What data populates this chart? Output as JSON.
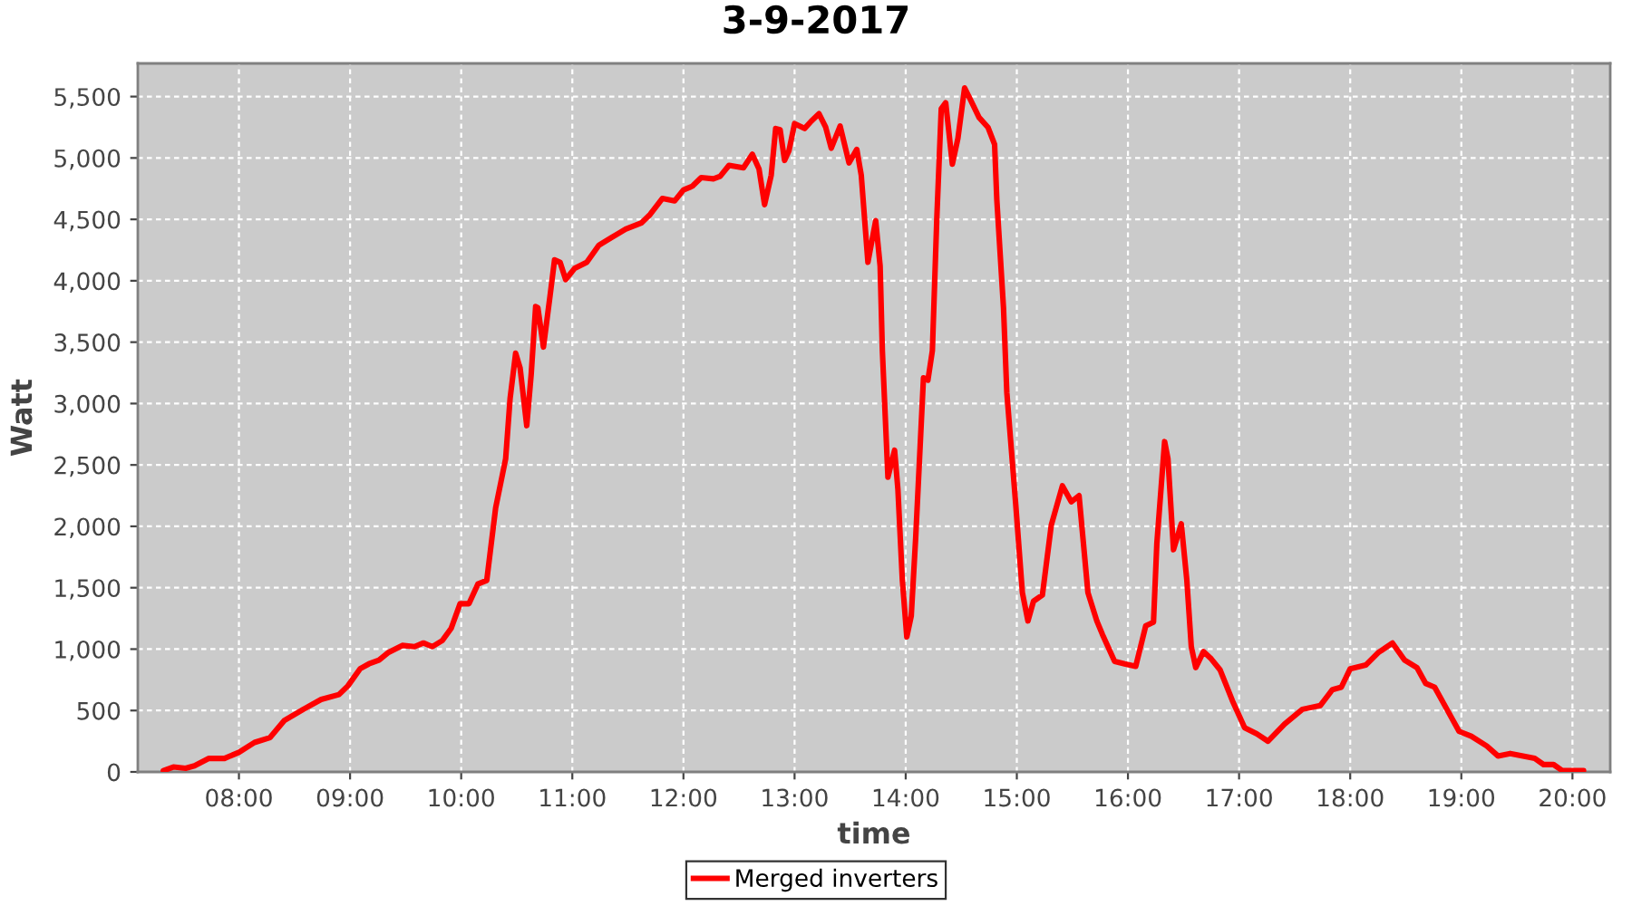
{
  "chart_data": {
    "type": "line",
    "title": "3-9-2017",
    "xlabel": "time",
    "ylabel": "Watt",
    "x": [
      7.32,
      7.41,
      7.52,
      7.6,
      7.73,
      7.87,
      8.0,
      8.14,
      8.28,
      8.41,
      8.58,
      8.74,
      8.9,
      8.98,
      9.09,
      9.17,
      9.26,
      9.34,
      9.47,
      9.58,
      9.66,
      9.74,
      9.83,
      9.91,
      9.99,
      10.07,
      10.15,
      10.23,
      10.31,
      10.4,
      10.44,
      10.49,
      10.53,
      10.59,
      10.63,
      10.67,
      10.69,
      10.74,
      10.8,
      10.84,
      10.89,
      10.94,
      11.02,
      11.13,
      11.24,
      11.35,
      11.48,
      11.62,
      11.7,
      11.81,
      11.92,
      12.0,
      12.08,
      12.16,
      12.27,
      12.33,
      12.41,
      12.54,
      12.62,
      12.68,
      12.73,
      12.79,
      12.83,
      12.87,
      12.91,
      12.95,
      13.0,
      13.09,
      13.15,
      13.22,
      13.28,
      13.33,
      13.41,
      13.49,
      13.56,
      13.6,
      13.66,
      13.73,
      13.77,
      13.79,
      13.84,
      13.9,
      13.93,
      13.97,
      14.01,
      14.05,
      14.09,
      14.16,
      14.2,
      14.24,
      14.28,
      14.32,
      14.36,
      14.42,
      14.47,
      14.53,
      14.58,
      14.66,
      14.74,
      14.8,
      14.82,
      14.88,
      14.91,
      14.99,
      15.05,
      15.1,
      15.15,
      15.23,
      15.31,
      15.41,
      15.49,
      15.56,
      15.64,
      15.72,
      15.77,
      15.88,
      15.97,
      16.07,
      16.16,
      16.23,
      16.26,
      16.33,
      16.36,
      16.41,
      16.48,
      16.53,
      16.57,
      16.61,
      16.68,
      16.75,
      16.83,
      16.94,
      17.05,
      17.16,
      17.26,
      17.41,
      17.57,
      17.73,
      17.84,
      17.92,
      18.0,
      18.14,
      18.25,
      18.38,
      18.49,
      18.6,
      18.68,
      18.76,
      18.87,
      18.98,
      19.09,
      19.23,
      19.33,
      19.44,
      19.66,
      19.74,
      19.83,
      19.91,
      20.1
    ],
    "series": [
      {
        "name": "Merged inverters",
        "color": "#ff0000",
        "values": [
          10,
          40,
          30,
          50,
          110,
          110,
          160,
          240,
          280,
          420,
          510,
          590,
          630,
          700,
          840,
          880,
          910,
          970,
          1030,
          1020,
          1050,
          1020,
          1070,
          1170,
          1370,
          1370,
          1530,
          1560,
          2150,
          2550,
          3040,
          3410,
          3290,
          2820,
          3240,
          3790,
          3780,
          3460,
          3880,
          4170,
          4150,
          4010,
          4100,
          4150,
          4290,
          4350,
          4420,
          4470,
          4540,
          4670,
          4650,
          4740,
          4770,
          4840,
          4830,
          4850,
          4940,
          4920,
          5030,
          4910,
          4620,
          4860,
          5240,
          5230,
          4980,
          5060,
          5280,
          5240,
          5300,
          5360,
          5250,
          5080,
          5260,
          4960,
          5070,
          4860,
          4150,
          4490,
          4120,
          3430,
          2400,
          2620,
          2300,
          1560,
          1100,
          1270,
          1910,
          3210,
          3190,
          3430,
          4510,
          5400,
          5450,
          4950,
          5160,
          5570,
          5480,
          5330,
          5250,
          5110,
          4660,
          3780,
          3090,
          2180,
          1460,
          1230,
          1390,
          1440,
          2010,
          2330,
          2200,
          2250,
          1460,
          1230,
          1120,
          900,
          880,
          860,
          1190,
          1220,
          1860,
          2690,
          2550,
          1810,
          2020,
          1560,
          1020,
          850,
          980,
          920,
          830,
          580,
          360,
          310,
          250,
          390,
          510,
          540,
          670,
          690,
          840,
          870,
          970,
          1050,
          910,
          850,
          720,
          690,
          510,
          330,
          290,
          210,
          130,
          150,
          110,
          60,
          60,
          10,
          10
        ]
      }
    ],
    "xlim": [
      7.09,
      20.34
    ],
    "ylim": [
      0,
      5770
    ],
    "xticks": [
      {
        "value": 8,
        "label": "08:00"
      },
      {
        "value": 9,
        "label": "09:00"
      },
      {
        "value": 10,
        "label": "10:00"
      },
      {
        "value": 11,
        "label": "11:00"
      },
      {
        "value": 12,
        "label": "12:00"
      },
      {
        "value": 13,
        "label": "13:00"
      },
      {
        "value": 14,
        "label": "14:00"
      },
      {
        "value": 15,
        "label": "15:00"
      },
      {
        "value": 16,
        "label": "16:00"
      },
      {
        "value": 17,
        "label": "17:00"
      },
      {
        "value": 18,
        "label": "18:00"
      },
      {
        "value": 19,
        "label": "19:00"
      },
      {
        "value": 20,
        "label": "20:00"
      }
    ],
    "yticks": [
      0,
      500,
      {
        "value": 1000,
        "label": "1,000"
      },
      {
        "value": 1500,
        "label": "1,500"
      },
      {
        "value": 2000,
        "label": "2,000"
      },
      {
        "value": 2500,
        "label": "2,500"
      },
      {
        "value": 3000,
        "label": "3,000"
      },
      {
        "value": 3500,
        "label": "3,500"
      },
      {
        "value": 4000,
        "label": "4,000"
      },
      {
        "value": 4500,
        "label": "4,500"
      },
      {
        "value": 5000,
        "label": "5,000"
      },
      {
        "value": 5500,
        "label": "5,500"
      }
    ],
    "grid": true,
    "legend": "bottom",
    "line_style": "solid"
  }
}
